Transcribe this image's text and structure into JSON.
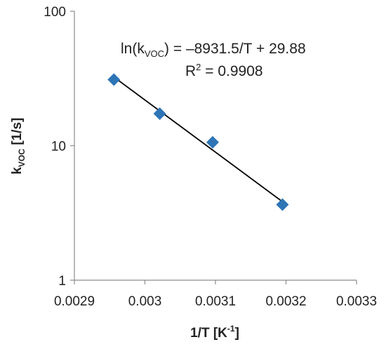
{
  "chart_data": {
    "type": "scatter",
    "title": "",
    "xlabel": "1/T [K",
    "xlabel_sup": "-1",
    "xlabel_end": "]",
    "ylabel": "k",
    "ylabel_sub": "VOC",
    "ylabel_end": " [1/s]",
    "xlim": [
      0.0029,
      0.0033
    ],
    "ylim": [
      1,
      100
    ],
    "yscale": "log",
    "grid": false,
    "legend": "none",
    "x_ticks": [
      "0.0029",
      "0.003",
      "0.0031",
      "0.0032",
      "0.0033"
    ],
    "y_ticks": [
      "1",
      "10",
      "100"
    ],
    "series": [
      {
        "marker": "diamond",
        "color": "#2E75B6",
        "points": [
          {
            "x": 0.002956,
            "y": 31.0
          },
          {
            "x": 0.003021,
            "y": 17.3
          },
          {
            "x": 0.003096,
            "y": 10.6
          },
          {
            "x": 0.003195,
            "y": 3.65
          }
        ]
      }
    ],
    "trendline": {
      "color": "#000000",
      "slope": -8931.5,
      "intercept": 29.88,
      "x_start": 0.002956,
      "x_end": 0.003195
    },
    "annotation": {
      "eq_prefix": "ln(k",
      "eq_sub": "VOC",
      "eq_rest": ") = –8931.5/T + 29.88",
      "r2_label": "R",
      "r2_sup": "2",
      "r2_rest": " = 0.9908"
    }
  }
}
